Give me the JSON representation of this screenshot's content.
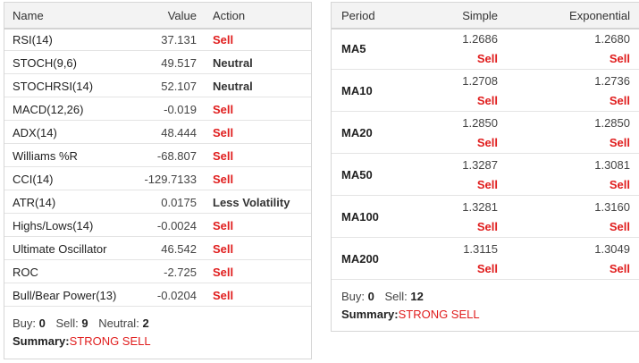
{
  "colors": {
    "sell": "#e01d1d",
    "neutral": "#333333",
    "header_bg": "#f3f3f3",
    "border": "#d6d6d6"
  },
  "indicators": {
    "headers": {
      "name": "Name",
      "value": "Value",
      "action": "Action"
    },
    "rows": [
      {
        "name": "RSI(14)",
        "value": "37.131",
        "action": "Sell",
        "type": "sell"
      },
      {
        "name": "STOCH(9,6)",
        "value": "49.517",
        "action": "Neutral",
        "type": "neutral"
      },
      {
        "name": "STOCHRSI(14)",
        "value": "52.107",
        "action": "Neutral",
        "type": "neutral"
      },
      {
        "name": "MACD(12,26)",
        "value": "-0.019",
        "action": "Sell",
        "type": "sell"
      },
      {
        "name": "ADX(14)",
        "value": "48.444",
        "action": "Sell",
        "type": "sell"
      },
      {
        "name": "Williams %R",
        "value": "-68.807",
        "action": "Sell",
        "type": "sell"
      },
      {
        "name": "CCI(14)",
        "value": "-129.7133",
        "action": "Sell",
        "type": "sell"
      },
      {
        "name": "ATR(14)",
        "value": "0.0175",
        "action": "Less Volatility",
        "type": "neutral"
      },
      {
        "name": "Highs/Lows(14)",
        "value": "-0.0024",
        "action": "Sell",
        "type": "sell"
      },
      {
        "name": "Ultimate Oscillator",
        "value": "46.542",
        "action": "Sell",
        "type": "sell"
      },
      {
        "name": "ROC",
        "value": "-2.725",
        "action": "Sell",
        "type": "sell"
      },
      {
        "name": "Bull/Bear Power(13)",
        "value": "-0.0204",
        "action": "Sell",
        "type": "sell"
      }
    ],
    "summary": {
      "buy_label": "Buy:",
      "buy": "0",
      "sell_label": "Sell:",
      "sell": "9",
      "neutral_label": "Neutral:",
      "neutral": "2",
      "summary_label": "Summary:",
      "summary": "STRONG SELL"
    }
  },
  "moving_averages": {
    "headers": {
      "period": "Period",
      "simple": "Simple",
      "exponential": "Exponential"
    },
    "rows": [
      {
        "period": "MA5",
        "simple_value": "1.2686",
        "simple_action": "Sell",
        "exp_value": "1.2680",
        "exp_action": "Sell"
      },
      {
        "period": "MA10",
        "simple_value": "1.2708",
        "simple_action": "Sell",
        "exp_value": "1.2736",
        "exp_action": "Sell"
      },
      {
        "period": "MA20",
        "simple_value": "1.2850",
        "simple_action": "Sell",
        "exp_value": "1.2850",
        "exp_action": "Sell"
      },
      {
        "period": "MA50",
        "simple_value": "1.3287",
        "simple_action": "Sell",
        "exp_value": "1.3081",
        "exp_action": "Sell"
      },
      {
        "period": "MA100",
        "simple_value": "1.3281",
        "simple_action": "Sell",
        "exp_value": "1.3160",
        "exp_action": "Sell"
      },
      {
        "period": "MA200",
        "simple_value": "1.3115",
        "simple_action": "Sell",
        "exp_value": "1.3049",
        "exp_action": "Sell"
      }
    ],
    "summary": {
      "buy_label": "Buy:",
      "buy": "0",
      "sell_label": "Sell:",
      "sell": "12",
      "summary_label": "Summary:",
      "summary": "STRONG SELL"
    }
  }
}
